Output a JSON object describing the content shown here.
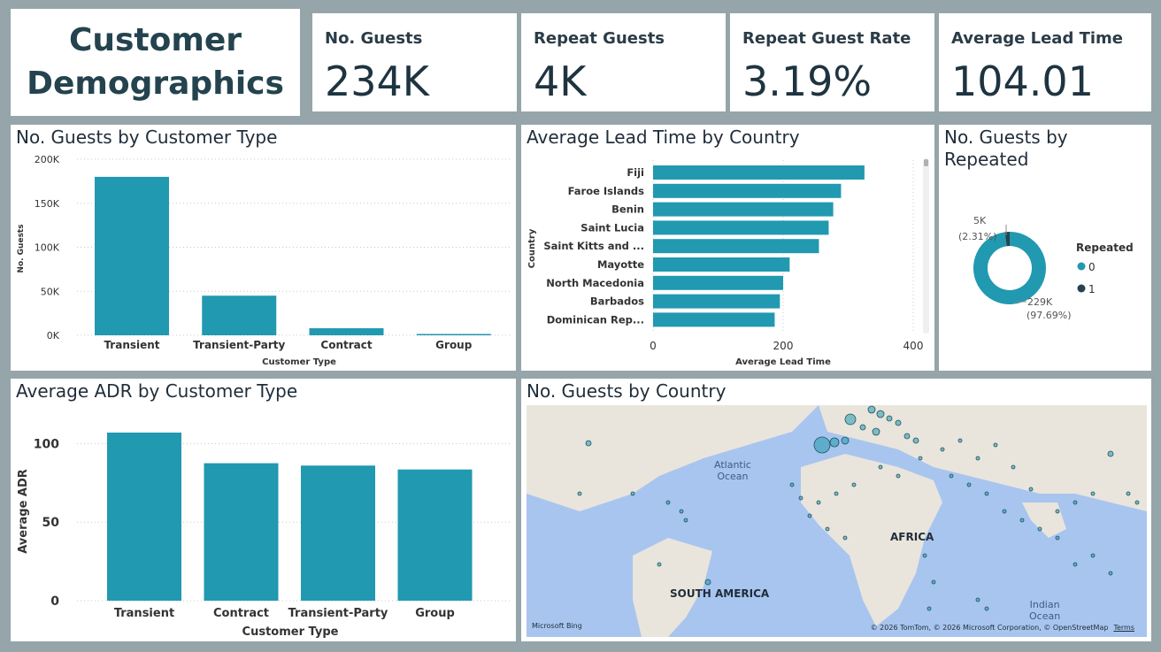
{
  "header": {
    "title_line1": "Customer",
    "title_line2": "Demographics"
  },
  "kpis": [
    {
      "label": "No. Guests",
      "value": "234K"
    },
    {
      "label": "Repeat Guests",
      "value": "4K"
    },
    {
      "label": "Repeat Guest Rate",
      "value": "3.19%"
    },
    {
      "label": "Average Lead Time",
      "value": "104.01"
    }
  ],
  "colors": {
    "bar": "#2199b0",
    "dark": "#25434f",
    "background": "#95a5aa"
  },
  "chart_data": [
    {
      "type": "bar",
      "title": "No. Guests by Customer Type",
      "categories": [
        "Transient",
        "Transient-Party",
        "Contract",
        "Group"
      ],
      "values": [
        180000,
        45000,
        8000,
        1500
      ],
      "ticks": [
        "0K",
        "50K",
        "100K",
        "150K",
        "200K"
      ],
      "xlabel": "Customer Type",
      "ylabel": "No. Guests",
      "ylim": [
        0,
        200000
      ]
    },
    {
      "type": "bar",
      "orientation": "horizontal",
      "title": "Average Lead Time by Country",
      "categories": [
        "Fiji",
        "Faroe Islands",
        "Benin",
        "Saint Lucia",
        "Saint Kitts and ...",
        "Mayotte",
        "North Macedonia",
        "Barbados",
        "Dominican Rep..."
      ],
      "values": [
        325,
        289,
        277,
        270,
        255,
        210,
        200,
        195,
        187
      ],
      "ticks": [
        "0",
        "200",
        "400"
      ],
      "xlabel": "Average Lead Time",
      "ylabel": "Country",
      "xlim": [
        0,
        400
      ]
    },
    {
      "type": "pie",
      "donut": true,
      "title": "No. Guests by Repeated",
      "legend_title": "Repeated",
      "labels": [
        "0",
        "1"
      ],
      "values": [
        229000,
        5000
      ],
      "percent_labels": [
        "229K (97.69%)",
        "5K (2.31%)"
      ],
      "data_labels_line1": [
        "229K",
        "5K"
      ],
      "data_labels_line2": [
        "(97.69%)",
        "(2.31%)"
      ],
      "colors": [
        "#2199b0",
        "#25434f"
      ]
    },
    {
      "type": "bar",
      "title": "Average ADR by Customer Type",
      "categories": [
        "Transient",
        "Contract",
        "Transient-Party",
        "Group"
      ],
      "values": [
        107,
        87.5,
        86,
        83.5
      ],
      "ticks": [
        "0",
        "50",
        "100"
      ],
      "xlabel": "Customer Type",
      "ylabel": "Average ADR",
      "ylim": [
        0,
        125
      ]
    }
  ],
  "map": {
    "title": "No. Guests by Country",
    "labels": {
      "atlantic_line1": "Atlantic",
      "atlantic_line2": "Ocean",
      "africa": "AFRICA",
      "south_america": "SOUTH AMERICA",
      "indian_line1": "Indian",
      "indian_line2": "Ocean"
    },
    "bing": "Microsoft Bing",
    "attribution": "© 2026 TomTom, © 2026 Microsoft Corporation, © OpenStreetMap",
    "terms": "Terms"
  }
}
